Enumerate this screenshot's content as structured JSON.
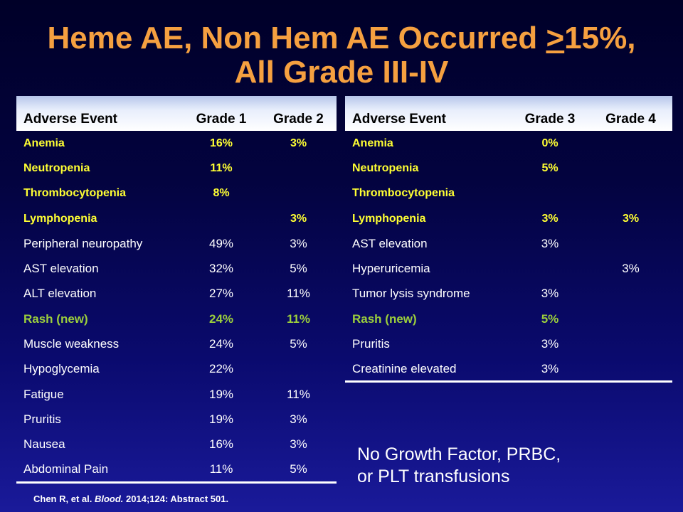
{
  "title": {
    "line1_before": "Heme AE, Non Hem AE Occurred ",
    "line1_underlined": ">",
    "line1_after": "15%,",
    "line2": "All Grade III-IV"
  },
  "left_table": {
    "headers": [
      "Adverse Event",
      "Grade 1",
      "Grade 2"
    ],
    "rows": [
      {
        "style": "heme",
        "cells": [
          "Anemia",
          "16%",
          "3%"
        ]
      },
      {
        "style": "heme",
        "cells": [
          "Neutropenia",
          "11%",
          ""
        ]
      },
      {
        "style": "heme",
        "cells": [
          "Thrombocytopenia",
          "8%",
          ""
        ]
      },
      {
        "style": "heme",
        "cells": [
          "Lymphopenia",
          "",
          "3%"
        ]
      },
      {
        "style": "normal",
        "cells": [
          "Peripheral neuropathy",
          "49%",
          "3%"
        ]
      },
      {
        "style": "normal",
        "cells": [
          "AST elevation",
          "32%",
          "5%"
        ]
      },
      {
        "style": "normal",
        "cells": [
          "ALT elevation",
          "27%",
          "11%"
        ]
      },
      {
        "style": "rash",
        "cells": [
          "Rash (new)",
          "24%",
          "11%"
        ]
      },
      {
        "style": "normal",
        "cells": [
          "Muscle weakness",
          "24%",
          "5%"
        ]
      },
      {
        "style": "normal",
        "cells": [
          "Hypoglycemia",
          "22%",
          ""
        ]
      },
      {
        "style": "normal",
        "cells": [
          "Fatigue",
          "19%",
          "11%"
        ]
      },
      {
        "style": "normal",
        "cells": [
          "Pruritis",
          "19%",
          "3%"
        ]
      },
      {
        "style": "normal",
        "cells": [
          "Nausea",
          "16%",
          "3%"
        ]
      },
      {
        "style": "normal",
        "cells": [
          "Abdominal  Pain",
          "11%",
          "5%"
        ]
      }
    ]
  },
  "right_table": {
    "headers": [
      "Adverse Event",
      "Grade 3",
      "Grade 4"
    ],
    "rows": [
      {
        "style": "heme",
        "cells": [
          "Anemia",
          "0%",
          ""
        ]
      },
      {
        "style": "heme",
        "cells": [
          "Neutropenia",
          "5%",
          ""
        ]
      },
      {
        "style": "heme",
        "cells": [
          "Thrombocytopenia",
          "",
          ""
        ]
      },
      {
        "style": "heme",
        "cells": [
          "Lymphopenia",
          "3%",
          "3%"
        ]
      },
      {
        "style": "normal",
        "cells": [
          "AST elevation",
          "3%",
          ""
        ]
      },
      {
        "style": "normal",
        "cells": [
          "Hyperuricemia",
          "",
          "3%"
        ]
      },
      {
        "style": "normal",
        "cells": [
          "Tumor  lysis syndrome",
          "3%",
          ""
        ]
      },
      {
        "style": "rash",
        "cells": [
          "Rash (new)",
          "5%",
          ""
        ]
      },
      {
        "style": "normal",
        "cells": [
          "Pruritis",
          "3%",
          ""
        ]
      },
      {
        "style": "normal",
        "cells": [
          "Creatinine elevated",
          "3%",
          ""
        ]
      }
    ]
  },
  "note": {
    "line1": "No Growth Factor, PRBC,",
    "line2": "or PLT transfusions"
  },
  "citation": {
    "authors": "Chen R, et al. ",
    "journal": "Blood.",
    "details": " 2014;124: Abstract 501."
  },
  "colors": {
    "title": "#f5a040",
    "heme_text": "#ffff33",
    "rash_text": "#9ccf3c",
    "body_text": "#ffffff",
    "background_top": "#000028",
    "background_bottom": "#1a1a9a"
  }
}
